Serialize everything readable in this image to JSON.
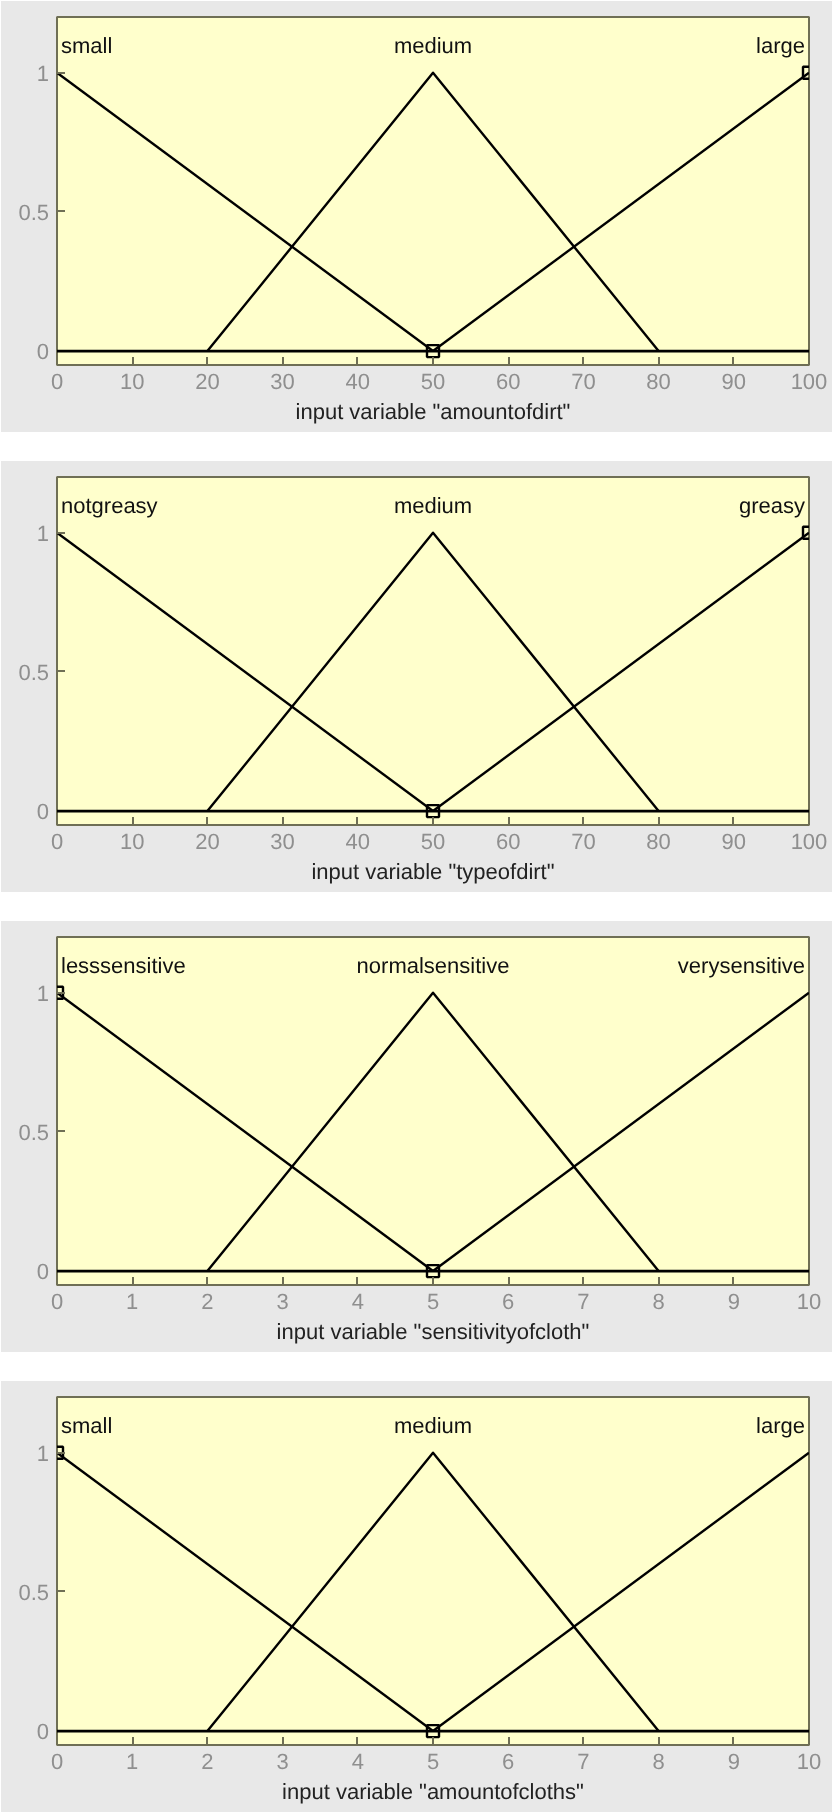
{
  "chart_data": [
    {
      "type": "line",
      "xlabel": "input variable \"amountofdirt\"",
      "xlim": [
        0,
        100
      ],
      "ylim": [
        -0.05,
        1.2
      ],
      "xticks": [
        0,
        10,
        20,
        30,
        40,
        50,
        60,
        70,
        80,
        90,
        100
      ],
      "yticks": [
        0,
        0.5,
        1
      ],
      "grid": false,
      "line_style": "solid",
      "ref_lines": [
        {
          "axis": "y",
          "value": 0,
          "color": "#000000"
        }
      ],
      "series": [
        {
          "name": "small",
          "color": "#000000",
          "x": [
            0,
            50
          ],
          "values": [
            1,
            0
          ]
        },
        {
          "name": "medium",
          "color": "#000000",
          "x": [
            20,
            50,
            80
          ],
          "values": [
            0,
            1,
            0
          ]
        },
        {
          "name": "large",
          "color": "#000000",
          "x": [
            50,
            100
          ],
          "values": [
            0,
            1
          ],
          "marker": "square"
        }
      ]
    },
    {
      "type": "line",
      "xlabel": "input variable \"typeofdirt\"",
      "xlim": [
        0,
        100
      ],
      "ylim": [
        -0.05,
        1.2
      ],
      "xticks": [
        0,
        10,
        20,
        30,
        40,
        50,
        60,
        70,
        80,
        90,
        100
      ],
      "yticks": [
        0,
        0.5,
        1
      ],
      "grid": false,
      "line_style": "solid",
      "ref_lines": [
        {
          "axis": "y",
          "value": 0,
          "color": "#000000"
        }
      ],
      "series": [
        {
          "name": "notgreasy",
          "color": "#000000",
          "x": [
            0,
            50
          ],
          "values": [
            1,
            0
          ]
        },
        {
          "name": "medium",
          "color": "#000000",
          "x": [
            20,
            50,
            80
          ],
          "values": [
            0,
            1,
            0
          ]
        },
        {
          "name": "greasy",
          "color": "#000000",
          "x": [
            50,
            100
          ],
          "values": [
            0,
            1
          ],
          "marker": "square"
        }
      ]
    },
    {
      "type": "line",
      "xlabel": "input variable \"sensitivityofcloth\"",
      "xlim": [
        0,
        10
      ],
      "ylim": [
        -0.05,
        1.2
      ],
      "xticks": [
        0,
        1,
        2,
        3,
        4,
        5,
        6,
        7,
        8,
        9,
        10
      ],
      "yticks": [
        0,
        0.5,
        1
      ],
      "grid": false,
      "line_style": "solid",
      "ref_lines": [
        {
          "axis": "y",
          "value": 0,
          "color": "#000000"
        }
      ],
      "series": [
        {
          "name": "lesssensitive",
          "color": "#000000",
          "x": [
            0,
            5
          ],
          "values": [
            1,
            0
          ],
          "marker": "square"
        },
        {
          "name": "normalsensitive",
          "color": "#000000",
          "x": [
            2,
            5,
            8
          ],
          "values": [
            0,
            1,
            0
          ]
        },
        {
          "name": "verysensitive",
          "color": "#000000",
          "x": [
            5,
            10
          ],
          "values": [
            0,
            1
          ]
        }
      ]
    },
    {
      "type": "line",
      "xlabel": "input variable \"amountofcloths\"",
      "xlim": [
        0,
        10
      ],
      "ylim": [
        -0.05,
        1.2
      ],
      "xticks": [
        0,
        1,
        2,
        3,
        4,
        5,
        6,
        7,
        8,
        9,
        10
      ],
      "yticks": [
        0,
        0.5,
        1
      ],
      "grid": false,
      "line_style": "solid",
      "ref_lines": [
        {
          "axis": "y",
          "value": 0,
          "color": "#000000"
        }
      ],
      "series": [
        {
          "name": "small",
          "color": "#000000",
          "x": [
            0,
            5
          ],
          "values": [
            1,
            0
          ],
          "marker": "square"
        },
        {
          "name": "medium",
          "color": "#000000",
          "x": [
            2,
            5,
            8
          ],
          "values": [
            0,
            1,
            0
          ]
        },
        {
          "name": "large",
          "color": "#000000",
          "x": [
            5,
            10
          ],
          "values": [
            0,
            1
          ]
        }
      ]
    }
  ]
}
